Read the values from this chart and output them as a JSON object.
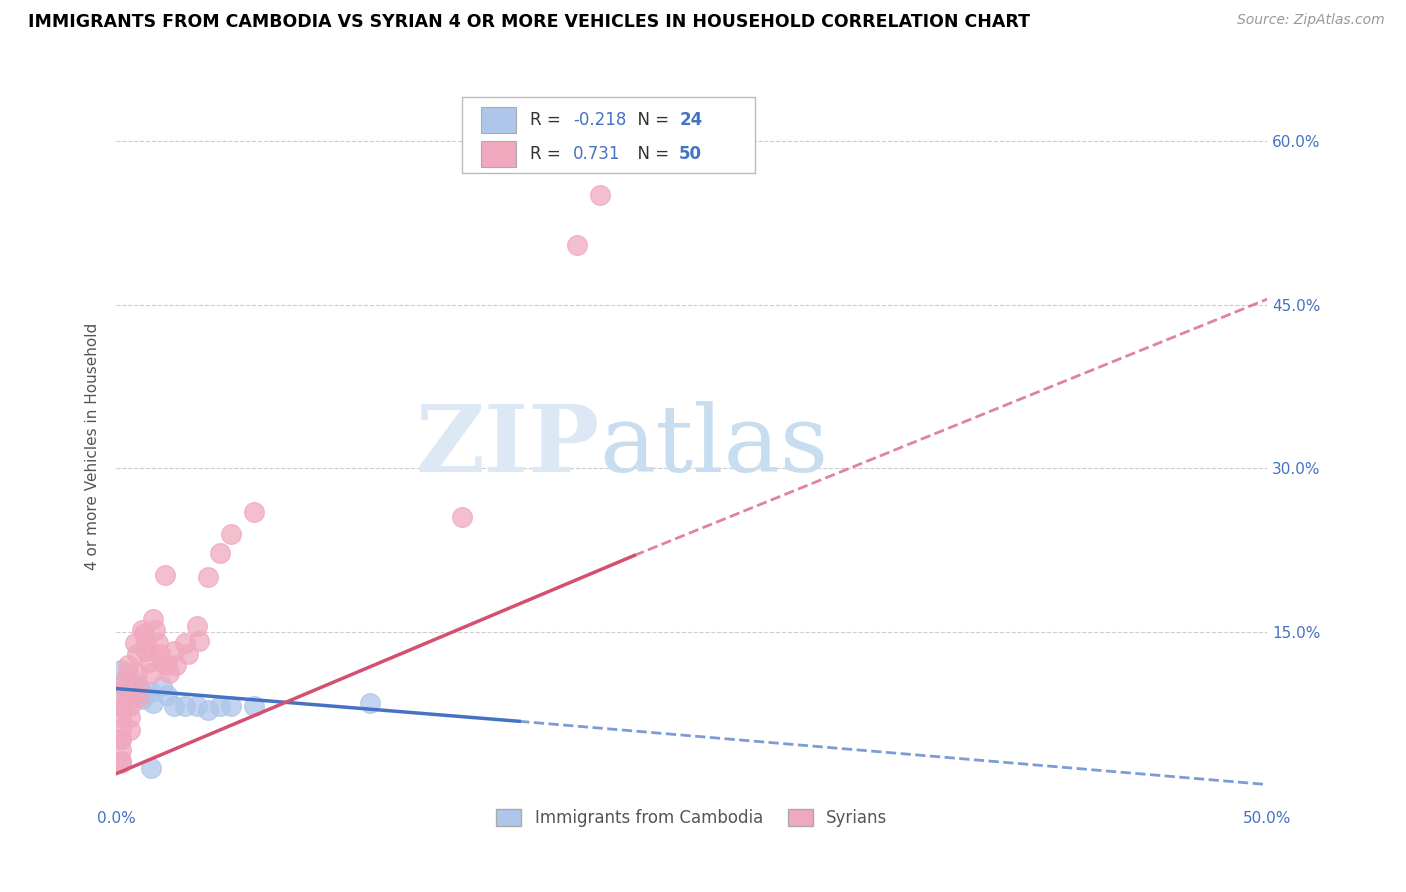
{
  "title": "IMMIGRANTS FROM CAMBODIA VS SYRIAN 4 OR MORE VEHICLES IN HOUSEHOLD CORRELATION CHART",
  "source": "Source: ZipAtlas.com",
  "ylabel": "4 or more Vehicles in Household",
  "xlim": [
    0.0,
    0.5
  ],
  "ylim": [
    -0.01,
    0.65
  ],
  "x_ticks": [
    0.0,
    0.5
  ],
  "x_tick_labels": [
    "0.0%",
    "50.0%"
  ],
  "y_ticks": [
    0.0,
    0.15,
    0.3,
    0.45,
    0.6
  ],
  "y_left_labels": [
    "",
    "",
    "",
    "",
    ""
  ],
  "y_right_labels": [
    "",
    "15.0%",
    "30.0%",
    "45.0%",
    "60.0%"
  ],
  "watermark_zip": "ZIP",
  "watermark_atlas": "atlas",
  "legend_cambodia_R": "-0.218",
  "legend_cambodia_N": "24",
  "legend_syrian_R": "0.731",
  "legend_syrian_N": "50",
  "cambodia_color": "#aec6ea",
  "syrian_color": "#f0a8be",
  "cambodia_line_color": "#4472c4",
  "syrian_line_color": "#d45070",
  "cambodia_scatter": [
    [
      0.002,
      0.115
    ],
    [
      0.003,
      0.105
    ],
    [
      0.004,
      0.098
    ],
    [
      0.005,
      0.095
    ],
    [
      0.006,
      0.09
    ],
    [
      0.007,
      0.105
    ],
    [
      0.008,
      0.1
    ],
    [
      0.009,
      0.092
    ],
    [
      0.01,
      0.098
    ],
    [
      0.011,
      0.088
    ],
    [
      0.012,
      0.093
    ],
    [
      0.015,
      0.095
    ],
    [
      0.016,
      0.085
    ],
    [
      0.02,
      0.1
    ],
    [
      0.022,
      0.092
    ],
    [
      0.025,
      0.082
    ],
    [
      0.03,
      0.082
    ],
    [
      0.035,
      0.082
    ],
    [
      0.04,
      0.078
    ],
    [
      0.045,
      0.082
    ],
    [
      0.05,
      0.082
    ],
    [
      0.06,
      0.082
    ],
    [
      0.11,
      0.085
    ],
    [
      0.015,
      0.025
    ]
  ],
  "syrian_scatter": [
    [
      0.002,
      0.082
    ],
    [
      0.002,
      0.072
    ],
    [
      0.002,
      0.062
    ],
    [
      0.002,
      0.052
    ],
    [
      0.002,
      0.052
    ],
    [
      0.002,
      0.042
    ],
    [
      0.002,
      0.032
    ],
    [
      0.002,
      0.03
    ],
    [
      0.003,
      0.092
    ],
    [
      0.003,
      0.08
    ],
    [
      0.003,
      0.102
    ],
    [
      0.005,
      0.102
    ],
    [
      0.005,
      0.112
    ],
    [
      0.005,
      0.12
    ],
    [
      0.006,
      0.082
    ],
    [
      0.006,
      0.072
    ],
    [
      0.006,
      0.06
    ],
    [
      0.007,
      0.092
    ],
    [
      0.008,
      0.14
    ],
    [
      0.009,
      0.13
    ],
    [
      0.009,
      0.112
    ],
    [
      0.01,
      0.1
    ],
    [
      0.01,
      0.09
    ],
    [
      0.011,
      0.152
    ],
    [
      0.012,
      0.148
    ],
    [
      0.013,
      0.14
    ],
    [
      0.013,
      0.132
    ],
    [
      0.014,
      0.122
    ],
    [
      0.015,
      0.112
    ],
    [
      0.016,
      0.162
    ],
    [
      0.017,
      0.152
    ],
    [
      0.018,
      0.14
    ],
    [
      0.019,
      0.13
    ],
    [
      0.02,
      0.122
    ],
    [
      0.021,
      0.202
    ],
    [
      0.022,
      0.12
    ],
    [
      0.023,
      0.112
    ],
    [
      0.025,
      0.132
    ],
    [
      0.026,
      0.12
    ],
    [
      0.03,
      0.14
    ],
    [
      0.031,
      0.13
    ],
    [
      0.035,
      0.155
    ],
    [
      0.036,
      0.142
    ],
    [
      0.04,
      0.2
    ],
    [
      0.045,
      0.222
    ],
    [
      0.05,
      0.24
    ],
    [
      0.06,
      0.26
    ],
    [
      0.15,
      0.255
    ],
    [
      0.2,
      0.505
    ],
    [
      0.21,
      0.55
    ]
  ],
  "cambodia_trendline_solid": [
    [
      0.0,
      0.098
    ],
    [
      0.175,
      0.068
    ]
  ],
  "cambodia_trendline_dashed": [
    [
      0.175,
      0.068
    ],
    [
      0.5,
      0.01
    ]
  ],
  "syrian_trendline_solid": [
    [
      0.0,
      0.02
    ],
    [
      0.225,
      0.22
    ]
  ],
  "syrian_trendline_dashed": [
    [
      0.225,
      0.22
    ],
    [
      0.5,
      0.455
    ]
  ]
}
